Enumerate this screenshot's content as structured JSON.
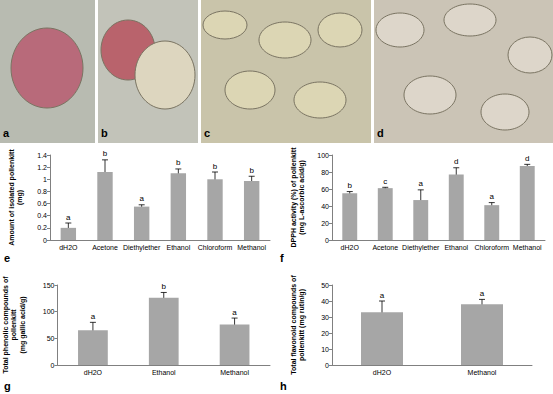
{
  "image_panels": [
    "a",
    "b",
    "c",
    "d"
  ],
  "chart_data": [
    {
      "type": "bar",
      "title": "e",
      "categories": [
        "dH2O",
        "Acetone",
        "Diethylether",
        "Ethanol",
        "Chloroform",
        "Methanol"
      ],
      "values": [
        0.2,
        1.12,
        0.55,
        1.1,
        1.0,
        0.97
      ],
      "errors": [
        0.08,
        0.2,
        0.03,
        0.07,
        0.12,
        0.08
      ],
      "annotations": [
        "a",
        "b",
        "a",
        "b",
        "b",
        "b"
      ],
      "color": "#a6a6a6",
      "y_label": "Amount of isolated pollenkitt\n(mg)",
      "ylim": [
        0,
        1.4
      ],
      "yticks": [
        0,
        0.2,
        0.4,
        0.6,
        0.8,
        1,
        1.2,
        1.4
      ],
      "grid": false
    },
    {
      "type": "bar",
      "title": "f",
      "categories": [
        "dH2O",
        "Acetone",
        "Diethylether",
        "Ethanol",
        "Chloroform",
        "Methanol"
      ],
      "values": [
        55,
        61,
        47,
        77,
        41,
        87
      ],
      "errors": [
        2,
        1,
        12,
        8,
        3,
        2
      ],
      "annotations": [
        "b",
        "c",
        "a",
        "d",
        "a",
        "d"
      ],
      "color": "#a6a6a6",
      "y_label": "DPPH activity (%) of pollenkitt\n(mg L-ascorbic acid/g)",
      "ylim": [
        0,
        100
      ],
      "yticks": [
        0,
        20,
        40,
        60,
        80,
        100
      ],
      "grid": false
    },
    {
      "type": "bar",
      "title": "g",
      "categories": [
        "dH2O",
        "Ethanol",
        "Methanol"
      ],
      "values": [
        65,
        126,
        76
      ],
      "errors": [
        15,
        10,
        12
      ],
      "annotations": [
        "a",
        "b",
        "a"
      ],
      "color": "#a6a6a6",
      "y_label": "Total phenolic compounds of\npollenkitt\n(mg gallic acid/g)",
      "ylim": [
        0,
        150
      ],
      "yticks": [
        0,
        50,
        100,
        150
      ],
      "grid": false
    },
    {
      "type": "bar",
      "title": "h",
      "categories": [
        "dH2O",
        "Methanol"
      ],
      "values": [
        33,
        38
      ],
      "errors": [
        7,
        3
      ],
      "annotations": [
        "a",
        "a"
      ],
      "color": "#a6a6a6",
      "y_label": "Total flavonoid compounds of\npollenkitt (mg rutin/g)",
      "ylim": [
        0,
        50
      ],
      "yticks": [
        0,
        10,
        20,
        30,
        40,
        50
      ],
      "grid": false
    }
  ]
}
